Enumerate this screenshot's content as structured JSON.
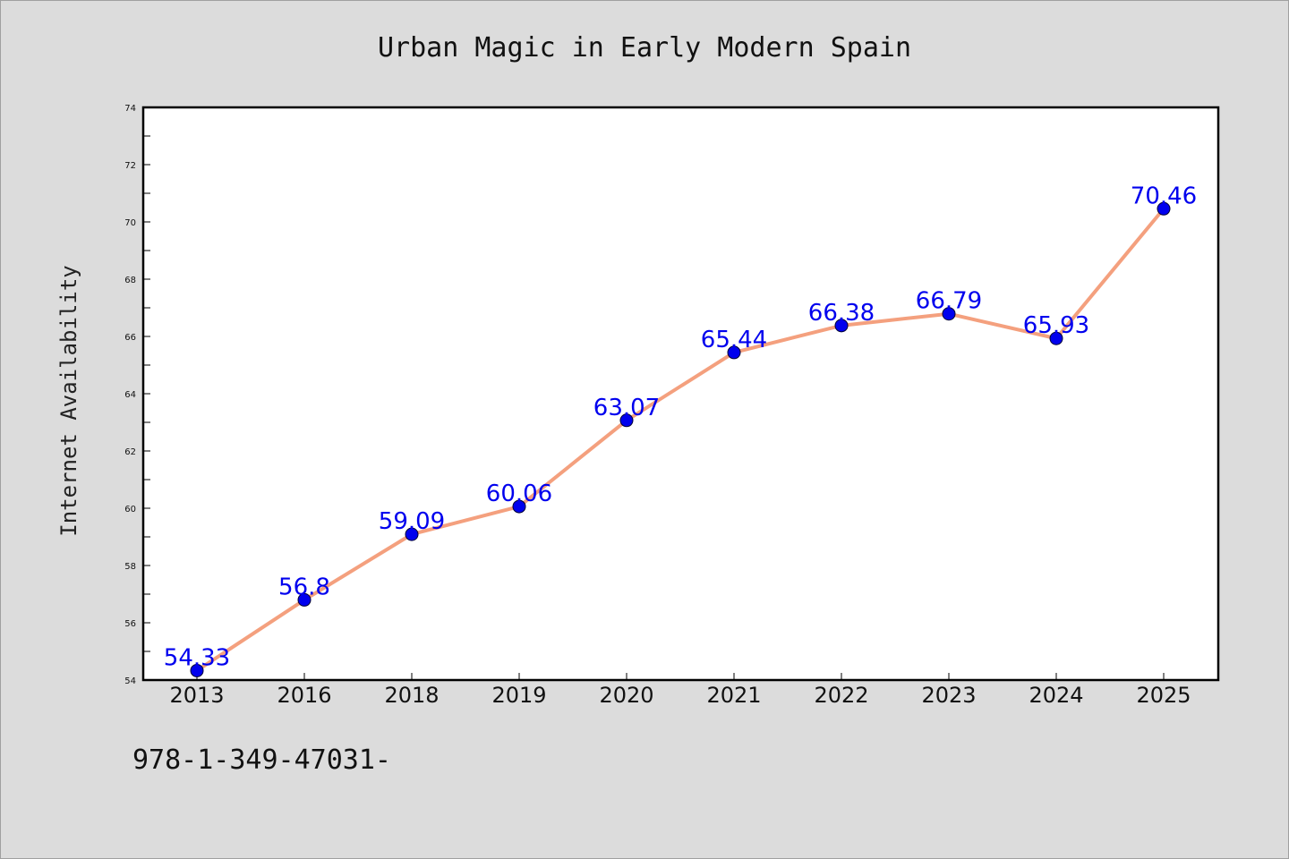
{
  "chart_data": {
    "type": "line",
    "title": "Urban Magic in Early Modern Spain",
    "xlabel": "",
    "ylabel": "Internet Availability",
    "categories": [
      "2013",
      "2016",
      "2018",
      "2019",
      "2020",
      "2021",
      "2022",
      "2023",
      "2024",
      "2025"
    ],
    "series": [
      {
        "values": [
          54.33,
          56.8,
          59.09,
          60.06,
          63.07,
          65.44,
          66.38,
          66.79,
          65.93,
          70.46
        ],
        "data_labels": [
          "54.33",
          "56.8",
          "59.09",
          "60.06",
          "63.07",
          "65.44",
          "66.38",
          "66.79",
          "65.93",
          "70.46"
        ]
      }
    ],
    "ylim": [
      54,
      74
    ],
    "yticks": [
      54,
      56,
      58,
      60,
      62,
      64,
      66,
      68,
      70,
      72,
      74
    ],
    "grid": false,
    "legend": "none",
    "colors": {
      "line": "#f4a07e",
      "marker": "#0000ee",
      "data_label": "#0000ee",
      "plot_background": "#ffffff",
      "page_background": "#dcdcdc"
    }
  },
  "footer_text": "978-1-349-47031-"
}
